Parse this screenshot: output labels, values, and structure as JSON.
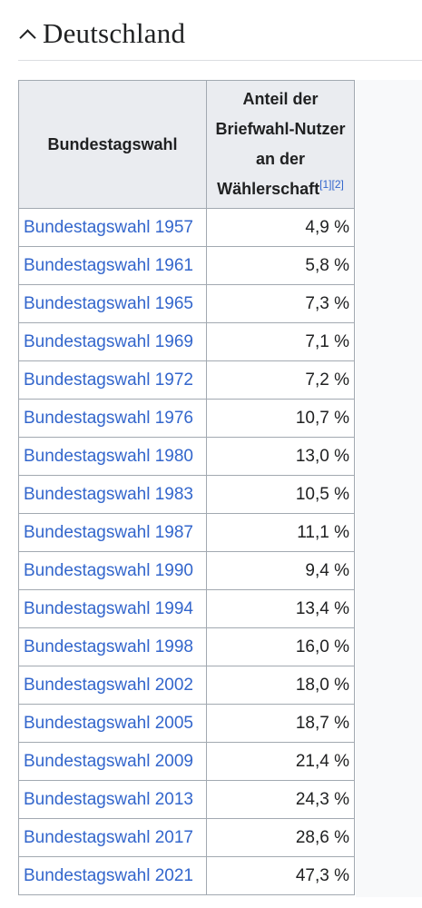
{
  "section": {
    "title": "Deutschland"
  },
  "table": {
    "header_col1": "Bundestagswahl",
    "header_col2_lines": [
      "Anteil der",
      "Briefwahl-Nutzer",
      "an der",
      "Wählerschaft"
    ],
    "header_refs": [
      "[1]",
      "[2]"
    ],
    "rows": [
      {
        "election": "Bundestagswahl 1957",
        "share": "4,9 %"
      },
      {
        "election": "Bundestagswahl 1961",
        "share": "5,8 %"
      },
      {
        "election": "Bundestagswahl 1965",
        "share": "7,3 %"
      },
      {
        "election": "Bundestagswahl 1969",
        "share": "7,1 %"
      },
      {
        "election": "Bundestagswahl 1972",
        "share": "7,2 %"
      },
      {
        "election": "Bundestagswahl 1976",
        "share": "10,7 %"
      },
      {
        "election": "Bundestagswahl 1980",
        "share": "13,0 %"
      },
      {
        "election": "Bundestagswahl 1983",
        "share": "10,5 %"
      },
      {
        "election": "Bundestagswahl 1987",
        "share": "11,1 %"
      },
      {
        "election": "Bundestagswahl 1990",
        "share": "9,4 %"
      },
      {
        "election": "Bundestagswahl 1994",
        "share": "13,4 %"
      },
      {
        "election": "Bundestagswahl 1998",
        "share": "16,0 %"
      },
      {
        "election": "Bundestagswahl 2002",
        "share": "18,0 %"
      },
      {
        "election": "Bundestagswahl 2005",
        "share": "18,7 %"
      },
      {
        "election": "Bundestagswahl 2009",
        "share": "21,4 %"
      },
      {
        "election": "Bundestagswahl 2013",
        "share": "24,3 %"
      },
      {
        "election": "Bundestagswahl 2017",
        "share": "28,6 %"
      },
      {
        "election": "Bundestagswahl 2021",
        "share": "47,3 %"
      }
    ]
  },
  "colors": {
    "link": "#3366cc",
    "header_bg": "#eaecf0",
    "border": "#a2a9b1",
    "text": "#202122"
  },
  "icons": {
    "section_toggle": "chevron-up-icon"
  }
}
